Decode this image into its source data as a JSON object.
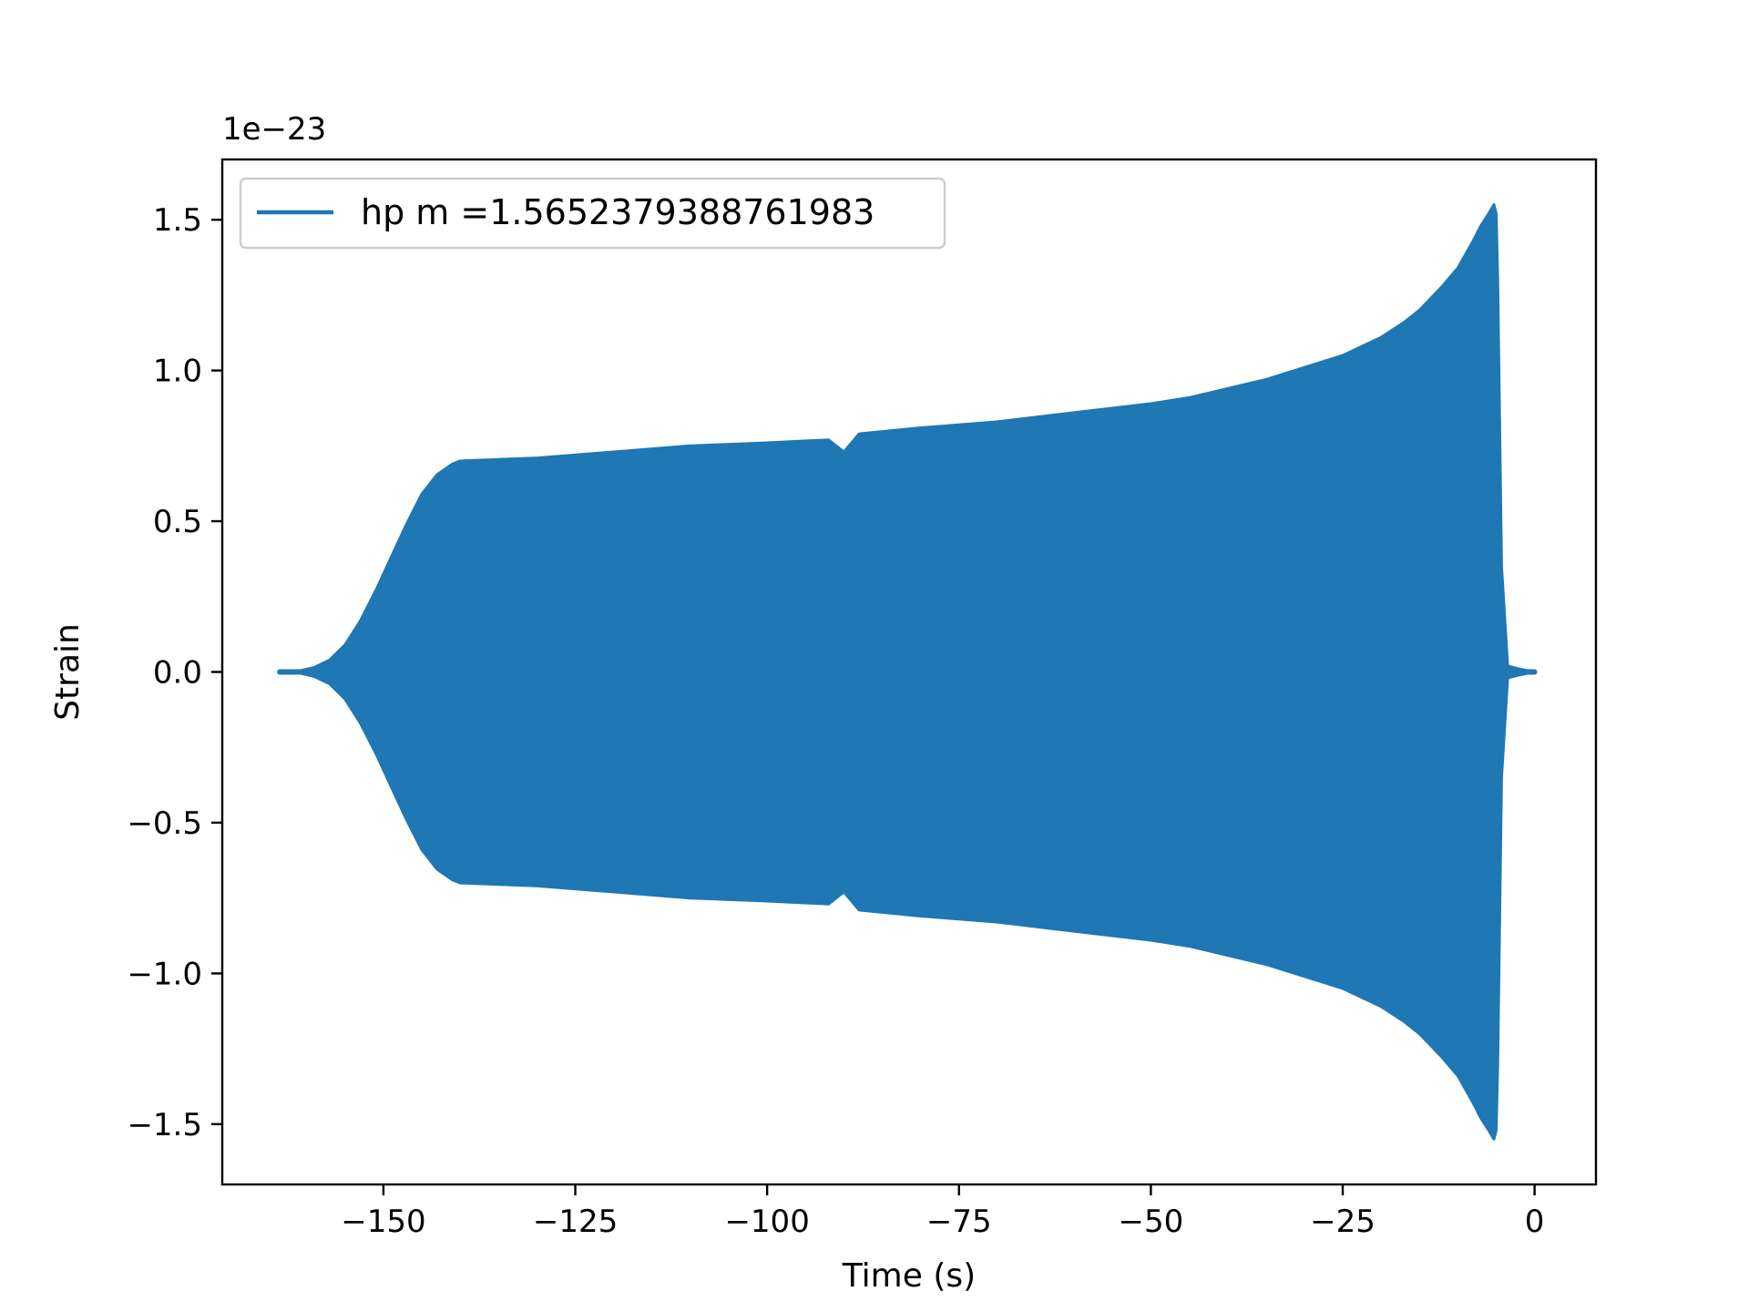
{
  "chart_data": {
    "type": "line",
    "xlabel": "Time (s)",
    "ylabel": "Strain",
    "y_offset_label": "1e−23",
    "xlim": [
      -171,
      8
    ],
    "ylim": [
      -1.7,
      1.7
    ],
    "xticks": [
      -150,
      -125,
      -100,
      -75,
      -50,
      -25,
      0
    ],
    "xtick_labels": [
      "−150",
      "−125",
      "−100",
      "−75",
      "−50",
      "−25",
      "0"
    ],
    "yticks": [
      -1.5,
      -1.0,
      -0.5,
      0.0,
      0.5,
      1.0,
      1.5
    ],
    "ytick_labels": [
      "−1.5",
      "−1.0",
      "−0.5",
      "0.0",
      "0.5",
      "1.0",
      "1.5"
    ],
    "grid": false,
    "legend_position": "upper-left",
    "series": [
      {
        "name": "hp m =1.5652379388761983",
        "color": "#1f77b4",
        "style": "oscillating waveform envelope (chirp)",
        "envelope": {
          "x": [
            -163.5,
            -161,
            -159,
            -157,
            -155,
            -153,
            -151,
            -149,
            -147,
            -145,
            -143,
            -141,
            -140,
            -130,
            -120,
            -110,
            -100,
            -92,
            -90,
            -88,
            -80,
            -70,
            -60,
            -50,
            -45,
            -40,
            -35,
            -30,
            -25,
            -20,
            -17,
            -15,
            -12,
            -10,
            -8,
            -7,
            -6,
            -5.3,
            -5.0,
            -4.8,
            -4.3,
            -3.5,
            -2,
            0
          ],
          "amplitude": [
            0.0,
            0.003,
            0.015,
            0.04,
            0.09,
            0.17,
            0.27,
            0.38,
            0.49,
            0.59,
            0.655,
            0.69,
            0.7,
            0.71,
            0.73,
            0.75,
            0.76,
            0.77,
            0.73,
            0.79,
            0.81,
            0.83,
            0.86,
            0.89,
            0.91,
            0.94,
            0.97,
            1.01,
            1.05,
            1.11,
            1.16,
            1.2,
            1.28,
            1.34,
            1.43,
            1.48,
            1.52,
            1.55,
            1.52,
            1.3,
            0.35,
            0.02,
            0.01,
            0.0
          ]
        }
      }
    ]
  }
}
